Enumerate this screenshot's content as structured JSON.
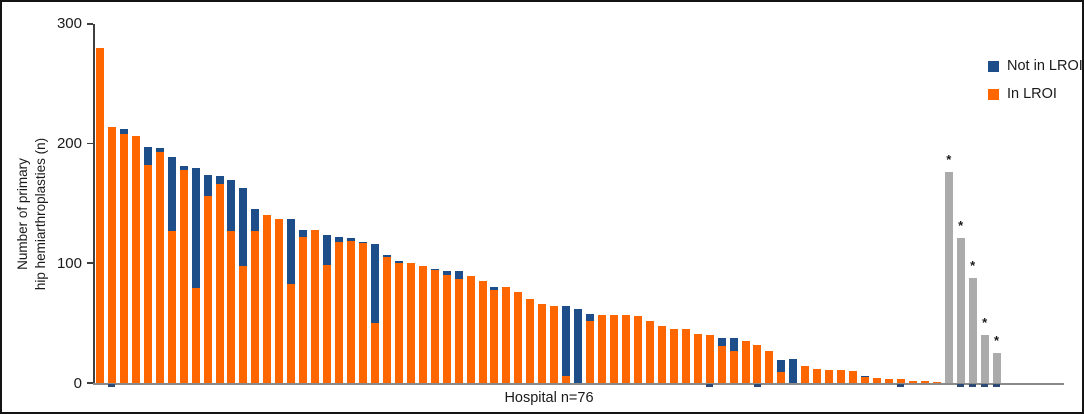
{
  "figure": {
    "y_axis": {
      "title_line1": "Number of primary",
      "title_line2": "hip hemiarthroplasties (n)",
      "tick_labels": [
        "0",
        "100",
        "200",
        "300"
      ]
    },
    "x_axis": {
      "title": "Hospital n=76",
      "tick_slots": [
        1,
        51,
        55,
        67,
        72,
        73,
        74,
        75
      ]
    },
    "legend": {
      "items": [
        {
          "label": "Not in LROI",
          "color": "#1d4e89"
        },
        {
          "label": "In LROI",
          "color": "#ff6600"
        }
      ]
    }
  },
  "chart_data": {
    "type": "bar",
    "stacked": true,
    "title": "",
    "xlabel": "Hospital n=76",
    "ylabel": "Number of primary hip hemiarthroplasties (n)",
    "ylim": [
      0,
      300
    ],
    "yticks": [
      0,
      100,
      200,
      300
    ],
    "grid": false,
    "legend_position": "top-right",
    "n_hospitals": 76,
    "series": [
      {
        "name": "In LROI",
        "color": "#ff6600",
        "values": [
          280,
          214,
          208,
          206,
          182,
          193,
          127,
          178,
          79,
          156,
          166,
          127,
          98,
          127,
          140,
          137,
          83,
          122,
          128,
          99,
          118,
          119,
          117,
          50,
          105,
          100,
          100,
          98,
          94,
          90,
          87,
          89,
          85,
          78,
          80,
          76,
          70,
          66,
          64,
          6,
          0,
          52,
          57,
          57,
          57,
          56,
          52,
          48,
          45,
          45,
          41,
          40,
          31,
          27,
          35,
          32,
          27,
          9,
          0,
          14,
          12,
          11,
          11,
          10,
          5,
          4,
          3,
          3,
          2,
          2,
          1
        ]
      },
      {
        "name": "Not in LROI",
        "color": "#1d4e89",
        "values": [
          0,
          0,
          4,
          0,
          15,
          3,
          62,
          3,
          101,
          18,
          7,
          43,
          65,
          18,
          0,
          0,
          54,
          6,
          0,
          25,
          4,
          2,
          1,
          66,
          2,
          2,
          0,
          0,
          1,
          4,
          7,
          0,
          0,
          2,
          0,
          0,
          0,
          0,
          0,
          58,
          62,
          6,
          0,
          0,
          0,
          0,
          0,
          0,
          0,
          0,
          0,
          0,
          7,
          11,
          0,
          0,
          0,
          10,
          20,
          0,
          0,
          0,
          0,
          0,
          1,
          0,
          0,
          0,
          0,
          0,
          0
        ]
      }
    ],
    "starred_bars": {
      "name": "starred-hospitals",
      "color": "#ababab",
      "marker": "*",
      "values": [
        176,
        121,
        88,
        40,
        25
      ]
    }
  }
}
